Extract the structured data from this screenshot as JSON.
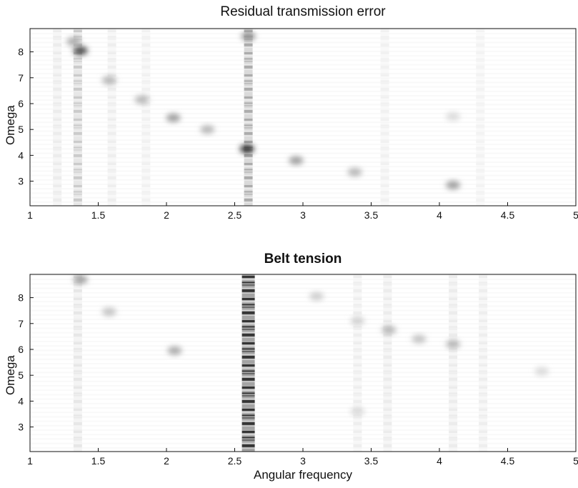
{
  "chart_data": [
    {
      "type": "heatmap",
      "title": "Residual transmission error",
      "xlabel": "",
      "ylabel": "Omega",
      "xlim": [
        1,
        5
      ],
      "ylim": [
        2.05,
        8.9
      ],
      "xticks": [
        1,
        1.5,
        2,
        2.5,
        3,
        3.5,
        4,
        4.5,
        5
      ],
      "xtick_labels": [
        "1",
        "1.5",
        "2",
        "2.5",
        "3",
        "3.5",
        "4",
        "4.5",
        "5"
      ],
      "yticks": [
        3,
        4,
        5,
        6,
        7,
        8
      ],
      "ytick_labels": [
        "3",
        "4",
        "5",
        "6",
        "7",
        "8"
      ],
      "colormap": [
        "#ffffff",
        "#111111"
      ],
      "vertical_bands": [
        {
          "x": 1.35,
          "intensity": 0.22
        },
        {
          "x": 1.2,
          "intensity": 0.08
        },
        {
          "x": 1.6,
          "intensity": 0.07
        },
        {
          "x": 1.85,
          "intensity": 0.06
        },
        {
          "x": 2.6,
          "intensity": 0.35
        },
        {
          "x": 3.6,
          "intensity": 0.06
        },
        {
          "x": 4.3,
          "intensity": 0.05
        }
      ],
      "peaks": [
        {
          "x": 1.37,
          "y": 8.05,
          "intensity": 0.75
        },
        {
          "x": 1.32,
          "y": 8.4,
          "intensity": 0.35
        },
        {
          "x": 1.58,
          "y": 6.9,
          "intensity": 0.3
        },
        {
          "x": 1.82,
          "y": 6.15,
          "intensity": 0.3
        },
        {
          "x": 2.05,
          "y": 5.45,
          "intensity": 0.4
        },
        {
          "x": 2.3,
          "y": 5.0,
          "intensity": 0.3
        },
        {
          "x": 2.59,
          "y": 4.25,
          "intensity": 0.85
        },
        {
          "x": 2.6,
          "y": 8.6,
          "intensity": 0.45
        },
        {
          "x": 2.95,
          "y": 3.8,
          "intensity": 0.4
        },
        {
          "x": 3.38,
          "y": 3.35,
          "intensity": 0.3
        },
        {
          "x": 4.1,
          "y": 2.85,
          "intensity": 0.4
        },
        {
          "x": 4.1,
          "y": 5.5,
          "intensity": 0.15
        }
      ]
    },
    {
      "type": "heatmap",
      "title": "Belt tension",
      "xlabel": "Angular frequency",
      "ylabel": "Omega",
      "xlim": [
        1,
        5
      ],
      "ylim": [
        2.05,
        8.9
      ],
      "xticks": [
        1,
        1.5,
        2,
        2.5,
        3,
        3.5,
        4,
        4.5,
        5
      ],
      "xtick_labels": [
        "1",
        "1.5",
        "2",
        "2.5",
        "3",
        "3.5",
        "4",
        "4.5",
        "5"
      ],
      "yticks": [
        3,
        4,
        5,
        6,
        7,
        8
      ],
      "ytick_labels": [
        "3",
        "4",
        "5",
        "6",
        "7",
        "8"
      ],
      "colormap": [
        "#ffffff",
        "#111111"
      ],
      "vertical_bands": [
        {
          "x": 1.35,
          "intensity": 0.1
        },
        {
          "x": 2.6,
          "intensity": 0.85
        },
        {
          "x": 3.4,
          "intensity": 0.07
        },
        {
          "x": 3.62,
          "intensity": 0.08
        },
        {
          "x": 4.1,
          "intensity": 0.08
        },
        {
          "x": 4.32,
          "intensity": 0.07
        }
      ],
      "peaks": [
        {
          "x": 1.37,
          "y": 8.7,
          "intensity": 0.4
        },
        {
          "x": 1.58,
          "y": 7.45,
          "intensity": 0.25
        },
        {
          "x": 2.06,
          "y": 5.95,
          "intensity": 0.35
        },
        {
          "x": 3.1,
          "y": 8.05,
          "intensity": 0.2
        },
        {
          "x": 3.4,
          "y": 7.1,
          "intensity": 0.18
        },
        {
          "x": 3.63,
          "y": 6.75,
          "intensity": 0.3
        },
        {
          "x": 3.85,
          "y": 6.4,
          "intensity": 0.25
        },
        {
          "x": 4.1,
          "y": 6.2,
          "intensity": 0.3
        },
        {
          "x": 4.75,
          "y": 5.15,
          "intensity": 0.15
        },
        {
          "x": 3.4,
          "y": 3.6,
          "intensity": 0.15
        }
      ]
    }
  ]
}
